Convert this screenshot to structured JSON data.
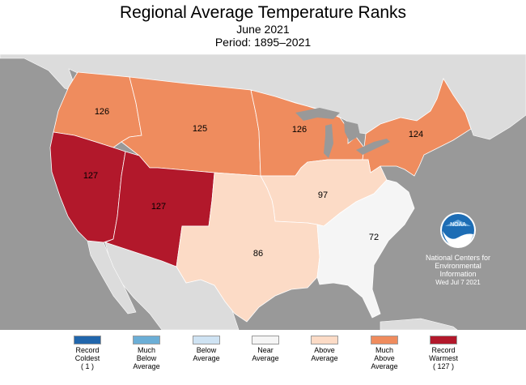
{
  "title": "Regional Average Temperature Ranks",
  "subtitle": "June 2021",
  "period": "Period: 1895–2021",
  "colors": {
    "ocean": "#999999",
    "land_outside": "#dcdcdc",
    "record_coldest": "#2166ac",
    "much_below": "#6baed6",
    "below": "#cfe3f3",
    "near": "#f5f5f5",
    "above": "#fcdbc6",
    "much_above": "#ef8c5e",
    "record_warmest": "#b2182b"
  },
  "regions": [
    {
      "rank": "126",
      "category": "much_above"
    },
    {
      "rank": "125",
      "category": "much_above"
    },
    {
      "rank": "126",
      "category": "much_above"
    },
    {
      "rank": "124",
      "category": "much_above"
    },
    {
      "rank": "127",
      "category": "record_warmest"
    },
    {
      "rank": "127",
      "category": "record_warmest"
    },
    {
      "rank": "97",
      "category": "above"
    },
    {
      "rank": "86",
      "category": "above"
    },
    {
      "rank": "72",
      "category": "near"
    }
  ],
  "legend": [
    {
      "label": "Record\nColdest\n( 1 )",
      "color": "#2166ac"
    },
    {
      "label": "Much\nBelow\nAverage",
      "color": "#6baed6"
    },
    {
      "label": "Below\nAverage",
      "color": "#cfe3f3"
    },
    {
      "label": "Near\nAverage",
      "color": "#f5f5f5"
    },
    {
      "label": "Above\nAverage",
      "color": "#fcdbc6"
    },
    {
      "label": "Much\nAbove\nAverage",
      "color": "#ef8c5e"
    },
    {
      "label": "Record\nWarmest\n( 127 )",
      "color": "#b2182b"
    }
  ],
  "logo": {
    "text": "NOAA",
    "line1": "National Centers for",
    "line2": "Environmental",
    "line3": "Information",
    "date": "Wed Jul  7 2021"
  }
}
